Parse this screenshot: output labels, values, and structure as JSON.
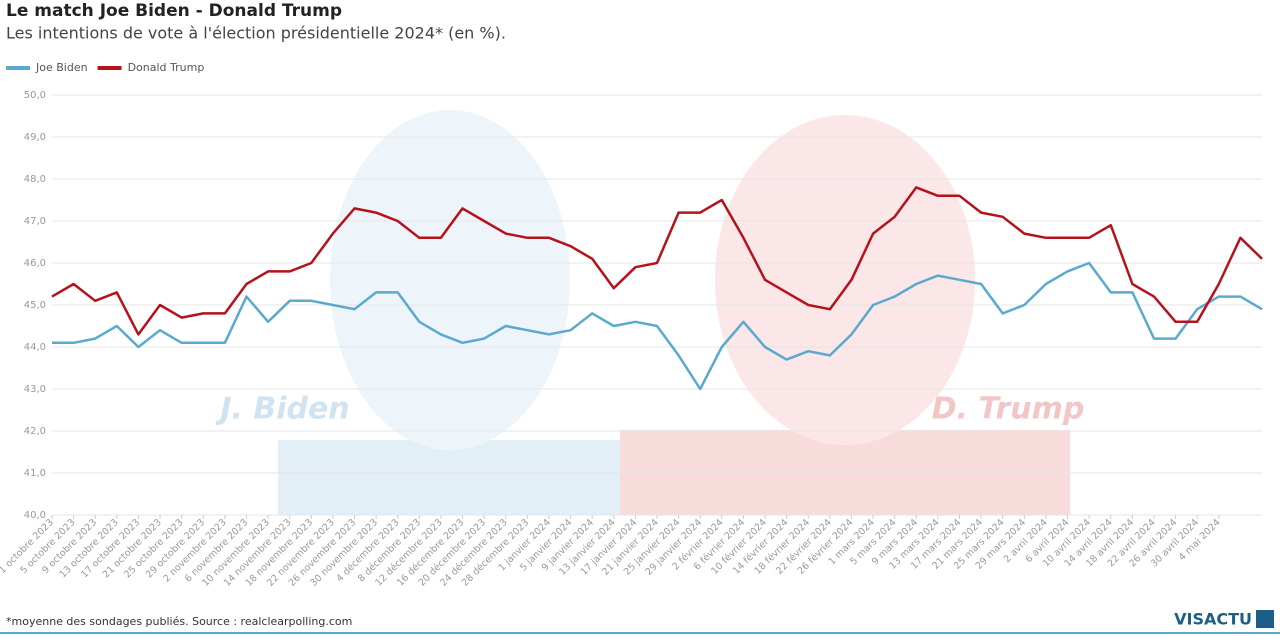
{
  "chart_data": {
    "type": "line",
    "title": "Le match Joe Biden - Donald Trump",
    "subtitle": "Les intentions de vote à l'élection présidentielle 2024* (en %).",
    "source": "*moyenne des sondages publiés. Source : realclearpolling.com",
    "logo": "VISACTU",
    "watermarks": [
      "J. Biden",
      "D. Trump"
    ],
    "categories": [
      "1 octobre 2023",
      "5 octobre 2023",
      "9 octobre 2023",
      "13 octobre 2023",
      "17 octobre 2023",
      "21 octobre 2023",
      "25 octobre 2023",
      "29 octobre 2023",
      "2 novembre 2023",
      "6 novembre 2023",
      "10 novembre 2023",
      "14 novembre 2023",
      "18 novembre 2023",
      "22 novembre 2023",
      "26 novembre 2023",
      "30 novembre 2023",
      "4 décembre 2023",
      "8 décembre 2023",
      "12 décembre 2023",
      "16 décembre 2023",
      "20 décembre 2023",
      "24 décembre 2023",
      "28 décembre 2023",
      "1 janvier 2024",
      "5 janvier 2024",
      "9 janvier 2024",
      "13 janvier 2024",
      "17 janvier 2024",
      "21 janvier 2024",
      "25 janvier 2024",
      "29 janvier 2024",
      "2 février 2024",
      "6 février 2024",
      "10 février 2024",
      "14 février 2024",
      "18 février 2024",
      "22 février 2024",
      "26 février 2024",
      "1 mars 2024",
      "5 mars 2024",
      "9 mars 2024",
      "13 mars 2024",
      "17 mars 2024",
      "21 mars 2024",
      "25 mars 2024",
      "29 mars 2024",
      "2 avril 2024",
      "6 avril 2024",
      "10 avril 2024",
      "14 avril 2024",
      "18 avril 2024",
      "22 avril 2024",
      "26 avril 2024",
      "30 avril 2024",
      "4 mai 2024",
      null,
      null
    ],
    "series": [
      {
        "name": "Joe Biden",
        "color": "#5ba9cf",
        "values": [
          44.1,
          44.1,
          44.2,
          44.5,
          44.0,
          44.4,
          44.1,
          44.1,
          44.1,
          45.2,
          44.6,
          45.1,
          45.1,
          45.0,
          44.9,
          45.3,
          45.3,
          44.6,
          44.3,
          44.1,
          44.2,
          44.5,
          44.4,
          44.3,
          44.4,
          44.8,
          44.5,
          44.6,
          44.5,
          43.8,
          43.0,
          44.0,
          44.6,
          44.0,
          43.7,
          43.9,
          43.8,
          44.3,
          45.0,
          45.2,
          45.5,
          45.7,
          45.6,
          45.5,
          44.8,
          45.0,
          45.5,
          45.8,
          46.0,
          45.3,
          45.3,
          44.2,
          44.2,
          44.9,
          45.2,
          45.2,
          44.9
        ]
      },
      {
        "name": "Donald Trump",
        "color": "#b5121b",
        "values": [
          45.2,
          45.5,
          45.1,
          45.3,
          44.3,
          45.0,
          44.7,
          44.8,
          44.8,
          45.5,
          45.8,
          45.8,
          46.0,
          46.7,
          47.3,
          47.2,
          47.0,
          46.6,
          46.6,
          47.3,
          47.0,
          46.7,
          46.6,
          46.6,
          46.4,
          46.1,
          45.4,
          45.9,
          46.0,
          47.2,
          47.2,
          47.5,
          46.6,
          45.6,
          45.3,
          45.0,
          44.9,
          45.6,
          46.7,
          47.1,
          47.8,
          47.6,
          47.6,
          47.2,
          47.1,
          46.7,
          46.6,
          46.6,
          46.6,
          46.9,
          45.5,
          45.2,
          44.6,
          44.6,
          45.5,
          46.6,
          46.1
        ]
      }
    ],
    "ylim": [
      40,
      50
    ],
    "yticks": [
      {
        "value": 40,
        "label": "40,0"
      },
      {
        "value": 41,
        "label": "41,0"
      },
      {
        "value": 42,
        "label": "42,0"
      },
      {
        "value": 43,
        "label": "43,0"
      },
      {
        "value": 44,
        "label": "44,0"
      },
      {
        "value": 45,
        "label": "45,0"
      },
      {
        "value": 46,
        "label": "46,0"
      },
      {
        "value": 47,
        "label": "47,0"
      },
      {
        "value": 48,
        "label": "48,0"
      },
      {
        "value": 49,
        "label": "49,0"
      },
      {
        "value": 50,
        "label": "50,0"
      }
    ],
    "grid": true
  }
}
